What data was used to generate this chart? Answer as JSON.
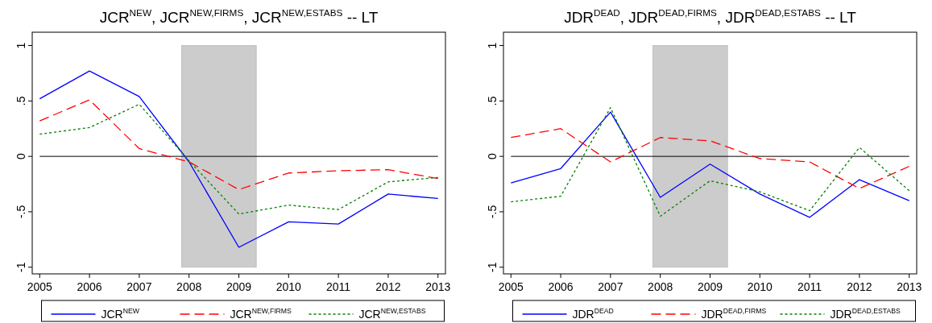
{
  "chart_data": [
    {
      "type": "line",
      "title": "JCR$^{NEW}$, JCR$^{NEW,FIRMS}$, JCR$^{NEW,ESTABS}$ -- LT",
      "x": [
        2005,
        2006,
        2007,
        2008,
        2009,
        2010,
        2011,
        2012,
        2013
      ],
      "xlim": [
        2004.85,
        2013.15
      ],
      "xticks": [
        2005,
        2006,
        2007,
        2008,
        2009,
        2010,
        2011,
        2012,
        2013
      ],
      "ylim": [
        -1.06,
        1.12
      ],
      "yticks": [
        {
          "value": -1,
          "label": "-1"
        },
        {
          "value": -0.5,
          "label": "-.5"
        },
        {
          "value": 0,
          "label": "0"
        },
        {
          "value": 0.5,
          "label": ".5"
        },
        {
          "value": 1,
          "label": "1"
        }
      ],
      "grid": false,
      "legend": "bottom",
      "marker": "none",
      "bands": [
        {
          "axis": "x",
          "from": 2007.85,
          "to": 2009.35,
          "color": "#cccccc"
        }
      ],
      "ref_lines": [
        {
          "axis": "y",
          "value": 0,
          "color": "#000000"
        }
      ],
      "series": [
        {
          "name": "JCR$^{NEW}$",
          "color": "#0000ff",
          "line_style": "solid",
          "values": [
            0.52,
            0.77,
            0.54,
            -0.05,
            -0.82,
            -0.59,
            -0.61,
            -0.34,
            -0.38
          ]
        },
        {
          "name": "JCR$^{NEW,FIRMS}$",
          "color": "#ff0000",
          "line_style": "dashed",
          "values": [
            0.32,
            0.51,
            0.07,
            -0.05,
            -0.3,
            -0.15,
            -0.13,
            -0.12,
            -0.2
          ]
        },
        {
          "name": "JCR$^{NEW,ESTABS}$",
          "color": "#008000",
          "line_style": "dotted",
          "values": [
            0.2,
            0.26,
            0.47,
            -0.04,
            -0.52,
            -0.44,
            -0.48,
            -0.23,
            -0.19
          ]
        }
      ]
    },
    {
      "type": "line",
      "title": "JDR$^{DEAD}$, JDR$^{DEAD,FIRMS}$, JDR$^{DEAD,ESTABS}$ -- LT",
      "x": [
        2005,
        2006,
        2007,
        2008,
        2009,
        2010,
        2011,
        2012,
        2013
      ],
      "xlim": [
        2004.85,
        2013.15
      ],
      "xticks": [
        2005,
        2006,
        2007,
        2008,
        2009,
        2010,
        2011,
        2012,
        2013
      ],
      "ylim": [
        -1.06,
        1.12
      ],
      "yticks": [
        {
          "value": -1,
          "label": "-1"
        },
        {
          "value": -0.5,
          "label": "-.5"
        },
        {
          "value": 0,
          "label": "0"
        },
        {
          "value": 0.5,
          "label": ".5"
        },
        {
          "value": 1,
          "label": "1"
        }
      ],
      "grid": false,
      "legend": "bottom",
      "marker": "none",
      "bands": [
        {
          "axis": "x",
          "from": 2007.85,
          "to": 2009.35,
          "color": "#cccccc"
        }
      ],
      "ref_lines": [
        {
          "axis": "y",
          "value": 0,
          "color": "#000000"
        }
      ],
      "series": [
        {
          "name": "JDR$^{DEAD}$",
          "color": "#0000ff",
          "line_style": "solid",
          "values": [
            -0.24,
            -0.11,
            0.4,
            -0.37,
            -0.07,
            -0.34,
            -0.55,
            -0.21,
            -0.4
          ]
        },
        {
          "name": "JDR$^{DEAD,FIRMS}$",
          "color": "#ff0000",
          "line_style": "dashed",
          "values": [
            0.17,
            0.25,
            -0.05,
            0.17,
            0.14,
            -0.02,
            -0.05,
            -0.29,
            -0.09
          ]
        },
        {
          "name": "JDR$^{DEAD,ESTABS}$",
          "color": "#008000",
          "line_style": "dotted",
          "values": [
            -0.41,
            -0.36,
            0.44,
            -0.54,
            -0.22,
            -0.32,
            -0.49,
            0.08,
            -0.31
          ]
        }
      ]
    }
  ]
}
